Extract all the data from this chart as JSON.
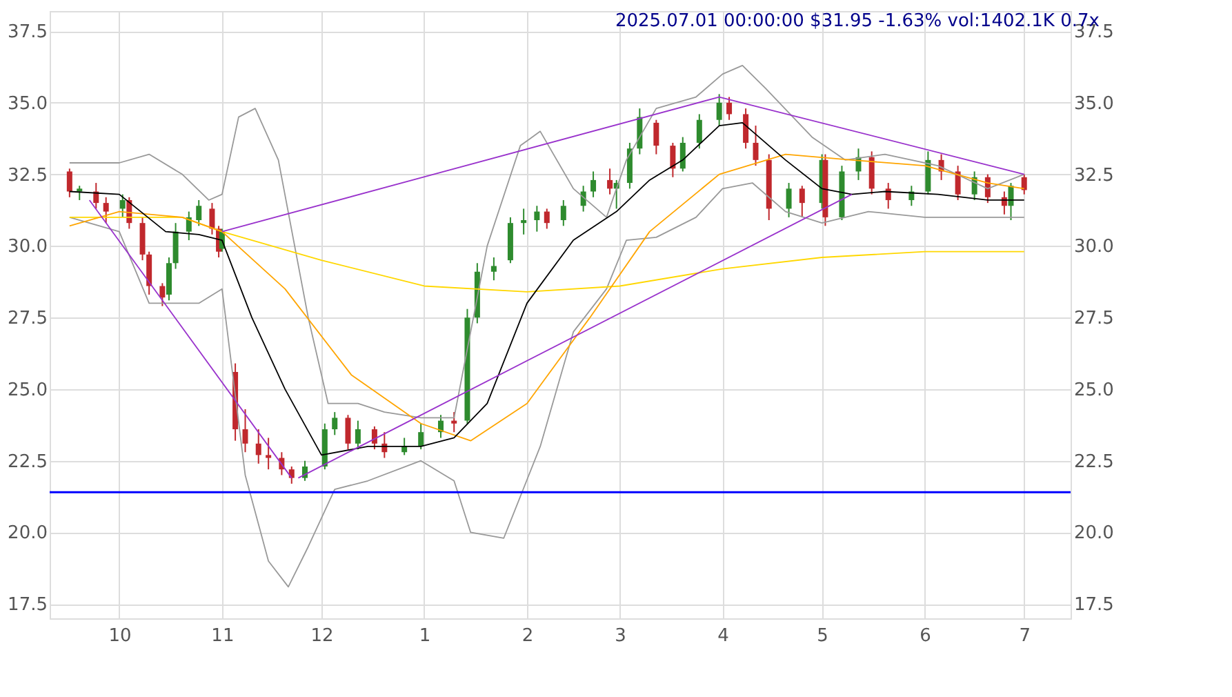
{
  "chart_data": {
    "type": "candlestick",
    "title": "2025.07.01 00:00:00 $31.95 -1.63% vol:1402.1K 0.7x",
    "x": [
      "2024-09-16",
      "2024-09-19",
      "2024-09-24",
      "2024-09-27",
      "2024-10-02",
      "2024-10-04",
      "2024-10-08",
      "2024-10-10",
      "2024-10-14",
      "2024-10-16",
      "2024-10-18",
      "2024-10-22",
      "2024-10-25",
      "2024-10-29",
      "2024-10-31",
      "2024-11-01",
      "2024-11-05",
      "2024-11-08",
      "2024-11-12",
      "2024-11-15",
      "2024-11-19",
      "2024-11-22",
      "2024-11-26",
      "2024-12-02",
      "2024-12-05",
      "2024-12-09",
      "2024-12-12",
      "2024-12-17",
      "2024-12-20",
      "2024-12-26",
      "2024-12-31",
      "2025-01-06",
      "2025-01-10",
      "2025-01-14",
      "2025-01-17",
      "2025-01-22",
      "2025-01-27",
      "2025-01-31",
      "2025-02-04",
      "2025-02-07",
      "2025-02-12",
      "2025-02-18",
      "2025-02-21",
      "2025-02-26",
      "2025-02-28",
      "2025-03-04",
      "2025-03-07",
      "2025-03-12",
      "2025-03-17",
      "2025-03-20",
      "2025-03-25",
      "2025-03-31",
      "2025-04-03",
      "2025-04-08",
      "2025-04-11",
      "2025-04-15",
      "2025-04-21",
      "2025-04-25",
      "2025-05-01",
      "2025-05-02",
      "2025-05-07",
      "2025-05-12",
      "2025-05-16",
      "2025-05-21",
      "2025-05-28",
      "2025-06-02",
      "2025-06-06",
      "2025-06-11",
      "2025-06-16",
      "2025-06-20",
      "2025-06-25",
      "2025-06-27",
      "2025-07-01"
    ],
    "ohlc": [
      [
        32.6,
        32.7,
        31.7,
        31.9
      ],
      [
        31.9,
        32.1,
        31.6,
        32.0
      ],
      [
        31.9,
        32.2,
        31.3,
        31.5
      ],
      [
        31.5,
        31.7,
        30.8,
        31.2
      ],
      [
        31.3,
        31.8,
        31.0,
        31.6
      ],
      [
        31.6,
        31.7,
        30.6,
        30.8
      ],
      [
        30.8,
        31.0,
        29.5,
        29.7
      ],
      [
        29.7,
        29.8,
        28.3,
        28.6
      ],
      [
        28.6,
        28.7,
        27.9,
        28.2
      ],
      [
        28.3,
        29.6,
        28.1,
        29.4
      ],
      [
        29.4,
        30.8,
        29.2,
        30.5
      ],
      [
        30.5,
        31.2,
        30.2,
        31.0
      ],
      [
        30.9,
        31.6,
        30.7,
        31.4
      ],
      [
        31.3,
        31.5,
        30.4,
        30.6
      ],
      [
        30.6,
        30.7,
        29.6,
        29.8
      ],
      [
        29.9,
        30.6,
        29.8,
        30.5
      ],
      [
        25.6,
        25.9,
        23.2,
        23.6
      ],
      [
        23.6,
        24.3,
        22.8,
        23.1
      ],
      [
        23.1,
        23.6,
        22.4,
        22.7
      ],
      [
        22.7,
        23.3,
        22.2,
        22.6
      ],
      [
        22.6,
        22.8,
        22.0,
        22.2
      ],
      [
        22.2,
        22.3,
        21.7,
        21.9
      ],
      [
        21.9,
        22.5,
        21.8,
        22.3
      ],
      [
        22.3,
        23.8,
        22.2,
        23.6
      ],
      [
        23.6,
        24.2,
        23.4,
        24.0
      ],
      [
        24.0,
        24.1,
        22.9,
        23.1
      ],
      [
        23.1,
        23.9,
        22.9,
        23.6
      ],
      [
        23.6,
        23.7,
        22.9,
        23.1
      ],
      [
        23.1,
        23.5,
        22.6,
        22.8
      ],
      [
        22.8,
        23.3,
        22.7,
        23.0
      ],
      [
        23.0,
        23.8,
        22.9,
        23.5
      ],
      [
        23.5,
        24.1,
        23.3,
        23.9
      ],
      [
        23.9,
        24.2,
        23.5,
        23.8
      ],
      [
        23.9,
        27.8,
        23.8,
        27.5
      ],
      [
        27.5,
        29.4,
        27.3,
        29.1
      ],
      [
        29.1,
        29.6,
        28.8,
        29.3
      ],
      [
        29.5,
        31.0,
        29.4,
        30.8
      ],
      [
        30.8,
        31.3,
        30.4,
        30.9
      ],
      [
        30.9,
        31.4,
        30.5,
        31.2
      ],
      [
        31.2,
        31.3,
        30.6,
        30.8
      ],
      [
        30.9,
        31.6,
        30.7,
        31.4
      ],
      [
        31.4,
        32.1,
        31.2,
        31.9
      ],
      [
        31.9,
        32.6,
        31.7,
        32.3
      ],
      [
        32.3,
        32.7,
        31.8,
        32.0
      ],
      [
        32.0,
        32.3,
        31.3,
        32.2
      ],
      [
        32.2,
        33.6,
        32.0,
        33.4
      ],
      [
        33.4,
        34.8,
        33.2,
        34.5
      ],
      [
        34.3,
        34.4,
        33.2,
        33.5
      ],
      [
        33.5,
        33.6,
        32.4,
        32.7
      ],
      [
        32.7,
        33.8,
        32.6,
        33.6
      ],
      [
        33.6,
        34.6,
        33.4,
        34.4
      ],
      [
        34.4,
        35.3,
        34.2,
        35.0
      ],
      [
        35.0,
        35.2,
        34.4,
        34.6
      ],
      [
        34.6,
        34.8,
        33.4,
        33.6
      ],
      [
        33.6,
        34.2,
        32.8,
        33.0
      ],
      [
        33.0,
        33.2,
        30.9,
        31.3
      ],
      [
        31.3,
        32.2,
        31.0,
        32.0
      ],
      [
        32.0,
        32.1,
        31.0,
        31.5
      ],
      [
        31.5,
        33.2,
        31.3,
        33.0
      ],
      [
        33.0,
        33.2,
        30.7,
        31.0
      ],
      [
        31.0,
        32.8,
        30.9,
        32.6
      ],
      [
        32.6,
        33.4,
        32.3,
        33.1
      ],
      [
        33.1,
        33.3,
        31.8,
        32.0
      ],
      [
        32.0,
        32.2,
        31.3,
        31.6
      ],
      [
        31.6,
        32.1,
        31.4,
        31.9
      ],
      [
        31.9,
        33.3,
        31.8,
        33.0
      ],
      [
        33.0,
        33.2,
        32.3,
        32.6
      ],
      [
        32.6,
        32.8,
        31.6,
        31.8
      ],
      [
        31.8,
        32.6,
        31.6,
        32.4
      ],
      [
        32.4,
        32.5,
        31.5,
        31.7
      ],
      [
        31.7,
        31.9,
        31.1,
        31.4
      ],
      [
        31.4,
        32.2,
        30.9,
        32.1
      ],
      [
        32.4,
        32.5,
        31.8,
        31.95
      ]
    ],
    "colors": [
      "#c0282d",
      "#2e8b2e",
      "#c0282d",
      "#c0282d",
      "#2e8b2e",
      "#c0282d",
      "#c0282d",
      "#c0282d",
      "#c0282d",
      "#2e8b2e",
      "#2e8b2e",
      "#2e8b2e",
      "#2e8b2e",
      "#c0282d",
      "#c0282d",
      "#2e8b2e",
      "#c0282d",
      "#c0282d",
      "#c0282d",
      "#c0282d",
      "#c0282d",
      "#c0282d",
      "#2e8b2e",
      "#2e8b2e",
      "#2e8b2e",
      "#c0282d",
      "#2e8b2e",
      "#c0282d",
      "#c0282d",
      "#2e8b2e",
      "#2e8b2e",
      "#2e8b2e",
      "#c0282d",
      "#2e8b2e",
      "#2e8b2e",
      "#2e8b2e",
      "#2e8b2e",
      "#2e8b2e",
      "#2e8b2e",
      "#c0282d",
      "#2e8b2e",
      "#2e8b2e",
      "#2e8b2e",
      "#c0282d",
      "#2e8b2e",
      "#2e8b2e",
      "#2e8b2e",
      "#c0282d",
      "#c0282d",
      "#2e8b2e",
      "#2e8b2e",
      "#2e8b2e",
      "#c0282d",
      "#c0282d",
      "#c0282d",
      "#c0282d",
      "#2e8b2e",
      "#c0282d",
      "#2e8b2e",
      "#c0282d",
      "#2e8b2e",
      "#2e8b2e",
      "#c0282d",
      "#c0282d",
      "#2e8b2e",
      "#2e8b2e",
      "#c0282d",
      "#c0282d",
      "#2e8b2e",
      "#c0282d",
      "#c0282d",
      "#2e8b2e",
      "#c0282d"
    ],
    "series": [
      {
        "type": "line",
        "color": "#999999",
        "x": [
          "2024-09-16",
          "2024-10-01",
          "2024-10-10",
          "2024-10-20",
          "2024-10-28",
          "2024-11-01",
          "2024-11-06",
          "2024-11-11",
          "2024-11-18",
          "2024-11-27",
          "2024-12-03",
          "2024-12-12",
          "2024-12-20",
          "2024-12-31",
          "2025-01-10",
          "2025-01-20",
          "2025-01-30",
          "2025-02-05",
          "2025-02-15",
          "2025-02-25",
          "2025-03-03",
          "2025-03-12",
          "2025-03-24",
          "2025-04-01",
          "2025-04-07",
          "2025-04-14",
          "2025-04-28",
          "2025-05-08",
          "2025-05-20",
          "2025-06-05",
          "2025-06-20",
          "2025-07-01"
        ],
        "values": [
          32.9,
          32.9,
          33.2,
          32.5,
          31.6,
          31.8,
          34.5,
          34.8,
          33.0,
          27.5,
          24.5,
          24.5,
          24.2,
          24.0,
          24.0,
          30.0,
          33.5,
          34.0,
          32.0,
          31.0,
          33.0,
          34.8,
          35.2,
          36.0,
          36.3,
          35.5,
          33.8,
          33.0,
          33.2,
          32.8,
          32.0,
          32.5
        ]
      },
      {
        "type": "line",
        "color": "#999999",
        "x": [
          "2024-09-16",
          "2024-10-01",
          "2024-10-10",
          "2024-10-25",
          "2024-11-01",
          "2024-11-08",
          "2024-11-15",
          "2024-11-21",
          "2024-11-27",
          "2024-12-05",
          "2024-12-15",
          "2024-12-31",
          "2025-01-10",
          "2025-01-15",
          "2025-01-25",
          "2025-02-05",
          "2025-02-15",
          "2025-02-25",
          "2025-03-03",
          "2025-03-12",
          "2025-03-24",
          "2025-04-01",
          "2025-04-10",
          "2025-04-20",
          "2025-05-01",
          "2025-05-15",
          "2025-06-01",
          "2025-06-15",
          "2025-07-01"
        ],
        "values": [
          31.0,
          30.5,
          28.0,
          28.0,
          28.5,
          22.0,
          19.0,
          18.1,
          19.5,
          21.5,
          21.8,
          22.5,
          21.8,
          20.0,
          19.8,
          23.0,
          27.0,
          28.5,
          30.2,
          30.3,
          31.0,
          32.0,
          32.2,
          31.2,
          30.8,
          31.2,
          31.0,
          31.0,
          31.0
        ]
      },
      {
        "type": "line",
        "color": "#ffd700",
        "x": [
          "2024-09-16",
          "2024-10-20",
          "2024-11-01",
          "2024-12-01",
          "2025-01-01",
          "2025-02-01",
          "2025-03-01",
          "2025-04-01",
          "2025-05-01",
          "2025-06-01",
          "2025-07-01"
        ],
        "values": [
          31.0,
          31.0,
          30.5,
          29.5,
          28.6,
          28.4,
          28.6,
          29.2,
          29.6,
          29.8,
          29.8
        ]
      },
      {
        "type": "line",
        "color": "#ffa500",
        "x": [
          "2024-09-16",
          "2024-10-01",
          "2024-10-20",
          "2024-11-01",
          "2024-11-20",
          "2024-12-10",
          "2024-12-31",
          "2025-01-15",
          "2025-02-01",
          "2025-02-20",
          "2025-03-10",
          "2025-03-31",
          "2025-04-20",
          "2025-05-10",
          "2025-06-01",
          "2025-06-20",
          "2025-07-01"
        ],
        "values": [
          30.7,
          31.2,
          31.0,
          30.5,
          28.5,
          25.5,
          23.8,
          23.2,
          24.5,
          27.5,
          30.5,
          32.5,
          33.2,
          33.0,
          32.8,
          32.2,
          32.0
        ]
      },
      {
        "type": "line",
        "color": "#000000",
        "x": [
          "2024-09-16",
          "2024-10-01",
          "2024-10-15",
          "2024-10-25",
          "2024-11-01",
          "2024-11-10",
          "2024-11-20",
          "2024-12-01",
          "2024-12-15",
          "2024-12-31",
          "2025-01-10",
          "2025-01-20",
          "2025-02-01",
          "2025-02-15",
          "2025-02-28",
          "2025-03-10",
          "2025-03-20",
          "2025-03-31",
          "2025-04-07",
          "2025-04-20",
          "2025-05-01",
          "2025-05-10",
          "2025-05-20",
          "2025-06-05",
          "2025-06-20",
          "2025-07-01"
        ],
        "values": [
          31.9,
          31.8,
          30.5,
          30.4,
          30.2,
          27.5,
          25.0,
          22.7,
          23.0,
          23.0,
          23.3,
          24.5,
          28.0,
          30.2,
          31.2,
          32.3,
          33.0,
          34.2,
          34.3,
          33.0,
          32.0,
          31.8,
          31.9,
          31.8,
          31.6,
          31.6
        ]
      },
      {
        "type": "line",
        "color": "#9932cc",
        "x": [
          "2024-09-22",
          "2024-11-22"
        ],
        "values": [
          31.6,
          21.9
        ]
      },
      {
        "type": "line",
        "color": "#9932cc",
        "x": [
          "2024-11-01",
          "2025-03-31",
          "2025-07-01"
        ],
        "values": [
          30.5,
          35.2,
          32.5
        ]
      },
      {
        "type": "line",
        "color": "#9932cc",
        "x": [
          "2024-11-24",
          "2025-05-10"
        ],
        "values": [
          21.9,
          31.8
        ]
      }
    ],
    "ref_lines": [
      {
        "axis": "y",
        "value": 21.4,
        "color": "#0000ff"
      }
    ],
    "xlim": [
      "2024-09-10",
      "2025-07-15"
    ],
    "xticks": [
      {
        "value": "2024-10-01",
        "label": "10"
      },
      {
        "value": "2024-11-01",
        "label": "11"
      },
      {
        "value": "2024-12-01",
        "label": "12"
      },
      {
        "value": "2025-01-01",
        "label": "1"
      },
      {
        "value": "2025-02-01",
        "label": "2"
      },
      {
        "value": "2025-03-01",
        "label": "3"
      },
      {
        "value": "2025-04-01",
        "label": "4"
      },
      {
        "value": "2025-05-01",
        "label": "5"
      },
      {
        "value": "2025-06-01",
        "label": "6"
      },
      {
        "value": "2025-07-01",
        "label": "7"
      }
    ],
    "ylim": [
      17.0,
      38.2
    ],
    "yticks": [
      {
        "value": 17.5,
        "label": "17.5"
      },
      {
        "value": 20,
        "label": "20.0"
      },
      {
        "value": 22.5,
        "label": "22.5"
      },
      {
        "value": 25,
        "label": "25.0"
      },
      {
        "value": 27.5,
        "label": "27.5"
      },
      {
        "value": 30,
        "label": "30.0"
      },
      {
        "value": 32.5,
        "label": "32.5"
      },
      {
        "value": 35,
        "label": "35.0"
      },
      {
        "value": 37.5,
        "label": "37.5"
      }
    ],
    "y2lim": [
      17.0,
      38.2
    ],
    "y2ticks": [
      {
        "value": 17.5,
        "label": "17.5"
      },
      {
        "value": 20,
        "label": "20.0"
      },
      {
        "value": 22.5,
        "label": "22.5"
      },
      {
        "value": 25,
        "label": "25.0"
      },
      {
        "value": 27.5,
        "label": "27.5"
      },
      {
        "value": 30,
        "label": "30.0"
      },
      {
        "value": 32.5,
        "label": "32.5"
      },
      {
        "value": 35,
        "label": "35.0"
      },
      {
        "value": 37.5,
        "label": "37.5"
      }
    ],
    "grid": true
  }
}
